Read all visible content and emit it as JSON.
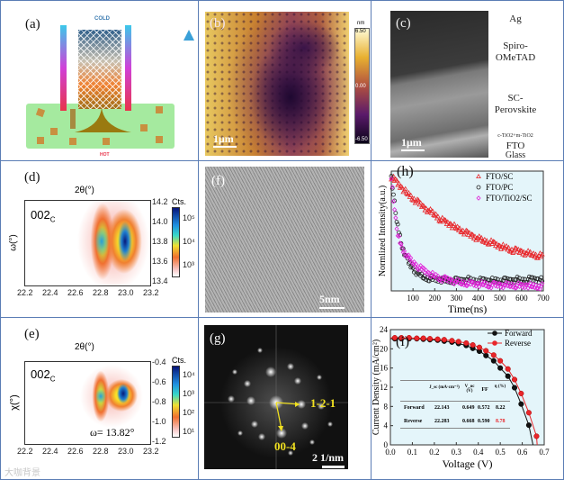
{
  "panels": {
    "a": {
      "label": "(a)",
      "top_text": "COLD",
      "bottom_text": "HOT"
    },
    "b": {
      "label": "(b)",
      "colorbar_unit": "nm",
      "colorbar_ticks": [
        "6.50",
        "0.00",
        "-6.50"
      ],
      "scale_bar": "1μm"
    },
    "c": {
      "label": "(c)",
      "scale_bar": "1μm",
      "layers": [
        "Ag",
        "Spiro-OMeTAD",
        "SC-Perovskite",
        "c-TiO2+m-TiO2",
        "FTO",
        "Glass"
      ],
      "layer_colors": [
        "#bfe3ee",
        "#b4bfd6",
        "#f0b07e",
        "#bfe3ee",
        "#a9ddee",
        "#3fb2e0"
      ]
    },
    "d": {
      "label": "(d)",
      "title": "2θ(°)",
      "reflection": "002",
      "reflection_sub": "C",
      "ylabel": "ω(°)",
      "x_ticks": [
        "22.2",
        "22.4",
        "22.6",
        "22.8",
        "23.0",
        "23.2"
      ],
      "y_ticks": [
        "14.2",
        "14.0",
        "13.8",
        "13.6",
        "13.4"
      ],
      "colorbar_title": "Cts.",
      "colorbar_ticks": [
        "10⁵",
        "10⁴",
        "10³"
      ]
    },
    "e": {
      "label": "(e)",
      "title": "2θ(°)",
      "reflection": "002",
      "reflection_sub": "C",
      "ylabel": "χ(°)",
      "x_ticks": [
        "22.2",
        "22.4",
        "22.6",
        "22.8",
        "23.0",
        "23.2"
      ],
      "y_ticks": [
        "-0.4",
        "-0.6",
        "-0.8",
        "-1.0",
        "-1.2"
      ],
      "colorbar_title": "Cts.",
      "colorbar_ticks": [
        "10⁴",
        "10³",
        "10²",
        "10¹"
      ],
      "annotation": "ω= 13.82°"
    },
    "f": {
      "label": "(f)",
      "scale_bar": "5nm"
    },
    "g": {
      "label": "(g)",
      "spot1": "1-2-1",
      "spot2": "00-4",
      "scale_bar": "2 1/nm"
    },
    "h": {
      "label": "(h)"
    },
    "i": {
      "label": "(i)",
      "table": {
        "headers": [
          "J_sc (mA·cm⁻²)",
          "V_oc (V)",
          "FF",
          "η (%)"
        ],
        "rows": [
          {
            "name": "Forward",
            "jsc": "22.143",
            "voc": "0.649",
            "ff": "0.572",
            "eta": "8.22"
          },
          {
            "name": "Reverse",
            "jsc": "22.283",
            "voc": "0.668",
            "ff": "0.590",
            "eta": "8.78"
          }
        ]
      }
    }
  },
  "watermark": "大咖背景",
  "chart_data": [
    {
      "id": "h",
      "type": "scatter",
      "xlabel": "Time(ns)",
      "ylabel": "Normlized Intensity(a.u.)",
      "xlim": [
        0,
        700
      ],
      "ylim": [
        0,
        1.05
      ],
      "x_ticks": [
        100,
        200,
        300,
        400,
        500,
        600,
        700
      ],
      "legend_position": "top-right",
      "x": [
        0,
        25,
        50,
        75,
        100,
        125,
        150,
        175,
        200,
        225,
        250,
        275,
        300,
        325,
        350,
        375,
        400,
        425,
        450,
        475,
        500,
        525,
        550,
        575,
        600,
        625,
        650,
        675,
        700
      ],
      "series": [
        {
          "name": "FTO/SC",
          "marker": "triangle",
          "color": "#e8262a",
          "values": [
            1.0,
            0.95,
            0.9,
            0.85,
            0.81,
            0.77,
            0.73,
            0.7,
            0.67,
            0.63,
            0.6,
            0.58,
            0.55,
            0.53,
            0.5,
            0.48,
            0.46,
            0.44,
            0.43,
            0.41,
            0.39,
            0.38,
            0.36,
            0.35,
            0.34,
            0.33,
            0.32,
            0.31,
            0.3
          ]
        },
        {
          "name": "FTO/PC",
          "marker": "circle",
          "color": "#222222",
          "values": [
            1.0,
            0.61,
            0.39,
            0.26,
            0.19,
            0.15,
            0.12,
            0.11,
            0.1,
            0.1,
            0.09,
            0.09,
            0.09,
            0.09,
            0.1,
            0.09,
            0.09,
            0.09,
            0.09,
            0.09,
            0.09,
            0.09,
            0.09,
            0.1,
            0.09,
            0.1,
            0.1,
            0.1,
            0.09
          ]
        },
        {
          "name": "FTO/TiO2/SC",
          "marker": "diamond",
          "color": "#e020d8",
          "values": [
            1.0,
            0.52,
            0.37,
            0.3,
            0.25,
            0.21,
            0.18,
            0.15,
            0.13,
            0.11,
            0.1,
            0.09,
            0.08,
            0.07,
            0.07,
            0.06,
            0.06,
            0.06,
            0.05,
            0.05,
            0.05,
            0.05,
            0.05,
            0.05,
            0.04,
            0.05,
            0.04,
            0.04,
            0.04
          ]
        }
      ]
    },
    {
      "id": "i",
      "type": "line",
      "xlabel": "Voltage (V)",
      "ylabel": "Current Density (mA/cm²)",
      "xlim": [
        0,
        0.7
      ],
      "ylim": [
        0,
        24
      ],
      "x_ticks": [
        "0.0",
        "0.1",
        "0.2",
        "0.3",
        "0.4",
        "0.5",
        "0.6",
        "0.7"
      ],
      "y_ticks": [
        "0",
        "4",
        "8",
        "12",
        "16",
        "20",
        "24"
      ],
      "legend_position": "top-right",
      "series": [
        {
          "name": "Forward",
          "color": "#111111",
          "voc": 0.649,
          "x": [
            0.02,
            0.05,
            0.085,
            0.12,
            0.15,
            0.18,
            0.215,
            0.245,
            0.28,
            0.31,
            0.345,
            0.375,
            0.405,
            0.435,
            0.47,
            0.5,
            0.535,
            0.565,
            0.595,
            0.63
          ],
          "values": [
            22.1,
            22.1,
            22.1,
            22.1,
            22.0,
            21.9,
            21.8,
            21.6,
            21.4,
            21.1,
            20.7,
            20.1,
            19.5,
            18.6,
            17.5,
            16.0,
            14.3,
            11.9,
            8.5,
            4.1
          ]
        },
        {
          "name": "Reverse",
          "color": "#e8262a",
          "voc": 0.668,
          "x": [
            0.02,
            0.05,
            0.085,
            0.12,
            0.15,
            0.18,
            0.215,
            0.245,
            0.28,
            0.31,
            0.345,
            0.375,
            0.405,
            0.435,
            0.47,
            0.5,
            0.535,
            0.565,
            0.595,
            0.63,
            0.665
          ],
          "values": [
            22.3,
            22.3,
            22.3,
            22.2,
            22.2,
            22.1,
            22.0,
            21.9,
            21.7,
            21.5,
            21.2,
            20.8,
            20.3,
            19.6,
            18.7,
            17.5,
            15.8,
            13.6,
            10.7,
            6.7,
            1.8
          ]
        }
      ]
    }
  ]
}
